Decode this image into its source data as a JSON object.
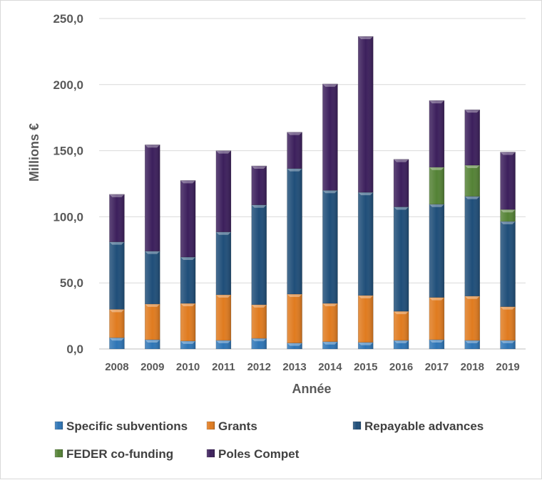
{
  "chart_data": {
    "type": "bar",
    "stacked": true,
    "title": "",
    "xlabel": "Année",
    "ylabel": "Millions  €",
    "ylim": [
      0,
      250
    ],
    "yticks": [
      "0,0",
      "50,0",
      "100,0",
      "150,0",
      "200,0",
      "250,0"
    ],
    "grid": true,
    "legend_position": "bottom",
    "categories": [
      "2008",
      "2009",
      "2010",
      "2011",
      "2012",
      "2013",
      "2014",
      "2015",
      "2016",
      "2017",
      "2018",
      "2019"
    ],
    "series": [
      {
        "name": "Specific subventions",
        "color": "#2e75b6",
        "values": [
          8.5,
          7,
          6,
          6.5,
          8,
          4.5,
          5.5,
          5,
          6.5,
          7,
          6.5,
          6.5
        ]
      },
      {
        "name": "Grants",
        "color": "#e07b1f",
        "values": [
          21.5,
          27,
          28.5,
          34.5,
          25.5,
          37,
          29,
          35.5,
          22,
          32,
          33.5,
          25.5
        ]
      },
      {
        "name": "Repayable advances",
        "color": "#1f4e79",
        "values": [
          51,
          40,
          35,
          47.5,
          75.5,
          95,
          85.5,
          78,
          79,
          70.5,
          75.5,
          64.5
        ]
      },
      {
        "name": "FEDER co-funding",
        "color": "#548235",
        "values": [
          0,
          0,
          0,
          0,
          0,
          0,
          0,
          0,
          0,
          28,
          23.5,
          9
        ]
      },
      {
        "name": "Poles Compet",
        "color": "#3c1f5c",
        "values": [
          36,
          80.5,
          58,
          61.5,
          29.5,
          27.5,
          80.5,
          118,
          36,
          50.5,
          42,
          43.5
        ]
      }
    ]
  }
}
